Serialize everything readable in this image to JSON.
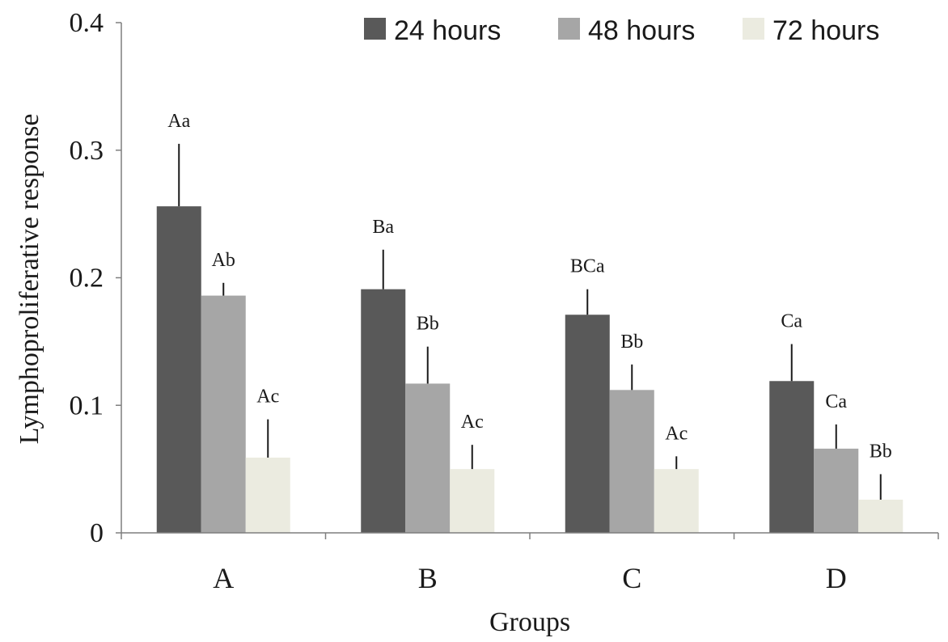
{
  "chart_data": {
    "type": "bar",
    "categories": [
      "A",
      "B",
      "C",
      "D"
    ],
    "series": [
      {
        "name": "24 hours",
        "color": "#595959",
        "values": [
          0.256,
          0.191,
          0.171,
          0.119
        ],
        "errors": [
          0.049,
          0.031,
          0.02,
          0.029
        ],
        "labels": [
          "Aa",
          "Ba",
          "BCa",
          "Ca"
        ]
      },
      {
        "name": "48 hours",
        "color": "#a6a6a6",
        "values": [
          0.186,
          0.117,
          0.112,
          0.066
        ],
        "errors": [
          0.01,
          0.029,
          0.02,
          0.019
        ],
        "labels": [
          "Ab",
          "Bb",
          "Bb",
          "Ca"
        ]
      },
      {
        "name": "72 hours",
        "color": "#ebebe0",
        "values": [
          0.059,
          0.05,
          0.05,
          0.026
        ],
        "errors": [
          0.03,
          0.019,
          0.01,
          0.02
        ],
        "labels": [
          "Ac",
          "Ac",
          "Ac",
          "Bb"
        ]
      }
    ],
    "xlabel": "Groups",
    "ylabel": "Lymphoproliferative response",
    "ylim": [
      0,
      0.4
    ],
    "yticks": [
      "0",
      "0.1",
      "0.2",
      "0.3",
      "0.4"
    ],
    "grid": false,
    "legend": "top"
  }
}
